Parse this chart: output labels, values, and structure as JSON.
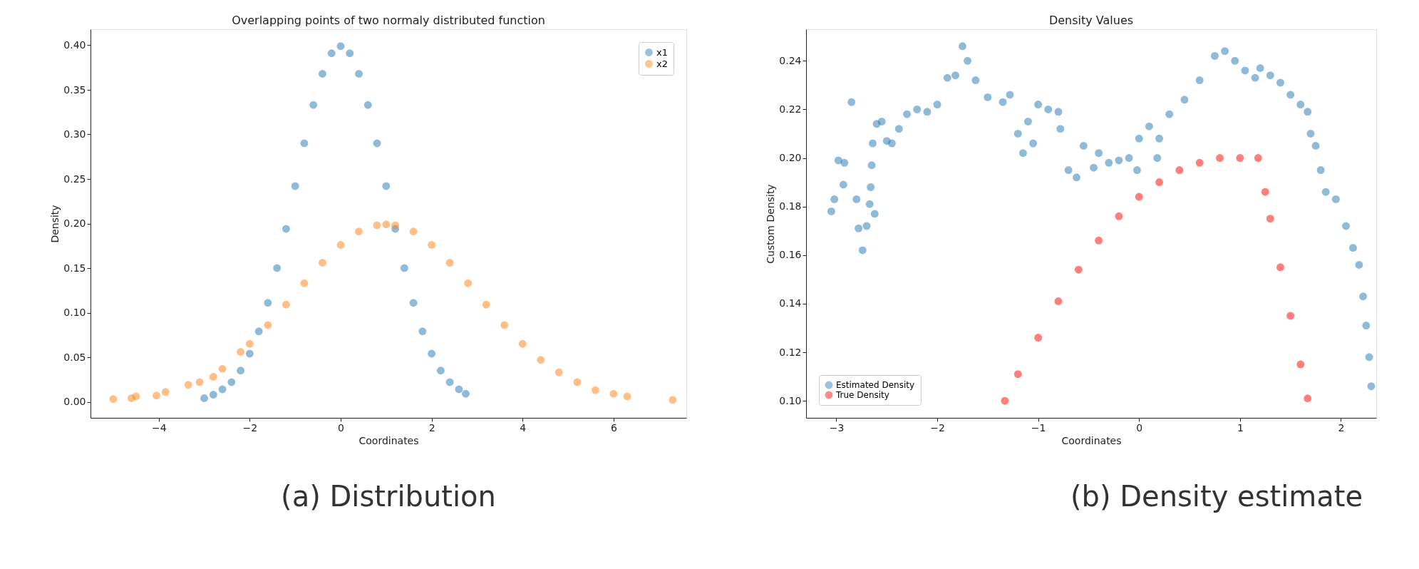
{
  "chart_data": [
    {
      "type": "scatter",
      "title": "Overlapping points of two normaly distributed function",
      "xlabel": "Coordinates",
      "ylabel": "Density",
      "annotations": [
        "(a) Distribution"
      ],
      "legend": "top right",
      "marker": "circle",
      "grid": false,
      "xlim": [
        -5.5,
        7.6
      ],
      "xticks": [
        {
          "value": -4,
          "label": "−4"
        },
        {
          "value": -2,
          "label": "−2"
        },
        0,
        2,
        4,
        6
      ],
      "ylim": [
        -0.018,
        0.418
      ],
      "yticks": [
        {
          "value": 0,
          "label": "0.00"
        },
        {
          "value": 0.05,
          "label": "0.05"
        },
        {
          "value": 0.1,
          "label": "0.10"
        },
        {
          "value": 0.15,
          "label": "0.15"
        },
        {
          "value": 0.2,
          "label": "0.20"
        },
        {
          "value": 0.25,
          "label": "0.25"
        },
        {
          "value": 0.3,
          "label": "0.30"
        },
        {
          "value": 0.35,
          "label": "0.35"
        },
        {
          "value": 0.4,
          "label": "0.40"
        }
      ],
      "series": [
        {
          "name": "x1",
          "color": "#1f77b4",
          "x": [
            -3.0,
            -2.8,
            -2.6,
            -2.4,
            -2.2,
            -2.0,
            -1.8,
            -1.6,
            -1.4,
            -1.2,
            -1.0,
            -0.8,
            -0.6,
            -0.4,
            -0.2,
            0.0,
            0.2,
            0.4,
            0.6,
            0.8,
            1.0,
            1.2,
            1.4,
            1.6,
            1.8,
            2.0,
            2.2,
            2.4,
            2.6,
            2.75
          ],
          "values": [
            0.004,
            0.008,
            0.014,
            0.022,
            0.035,
            0.054,
            0.079,
            0.111,
            0.15,
            0.194,
            0.242,
            0.29,
            0.333,
            0.368,
            0.391,
            0.399,
            0.391,
            0.368,
            0.333,
            0.29,
            0.242,
            0.194,
            0.15,
            0.111,
            0.079,
            0.054,
            0.035,
            0.022,
            0.014,
            0.009
          ]
        },
        {
          "name": "x2",
          "color": "#ff7f0e",
          "x": [
            -5.0,
            -4.6,
            -4.5,
            -4.05,
            -3.85,
            -3.35,
            -3.1,
            -2.8,
            -2.6,
            -2.2,
            -2.0,
            -1.6,
            -1.2,
            -0.8,
            -0.4,
            0.0,
            0.4,
            0.8,
            1.0,
            1.2,
            1.6,
            2.0,
            2.4,
            2.8,
            3.2,
            3.6,
            4.0,
            4.4,
            4.8,
            5.2,
            5.6,
            6.0,
            6.3,
            7.3
          ],
          "values": [
            0.003,
            0.004,
            0.006,
            0.007,
            0.011,
            0.019,
            0.022,
            0.028,
            0.037,
            0.056,
            0.065,
            0.086,
            0.109,
            0.133,
            0.156,
            0.176,
            0.191,
            0.198,
            0.199,
            0.198,
            0.191,
            0.176,
            0.156,
            0.133,
            0.109,
            0.086,
            0.065,
            0.047,
            0.033,
            0.022,
            0.013,
            0.009,
            0.006,
            0.002
          ]
        }
      ]
    },
    {
      "type": "scatter",
      "title": "Density Values",
      "xlabel": "Coordinates",
      "ylabel": "Custom Density",
      "annotations": [
        "(b) Density estimate"
      ],
      "legend": "bottom left",
      "marker": "circle",
      "grid": false,
      "xlim": [
        -3.3,
        2.35
      ],
      "xticks": [
        {
          "value": -3,
          "label": "−3"
        },
        {
          "value": -2,
          "label": "−2"
        },
        {
          "value": -1,
          "label": "−1"
        },
        0,
        1,
        2
      ],
      "ylim": [
        0.093,
        0.253
      ],
      "yticks": [
        {
          "value": 0.1,
          "label": "0.10"
        },
        0.12,
        0.14,
        0.16,
        0.18,
        {
          "value": 0.2,
          "label": "0.20"
        },
        0.22,
        0.24
      ],
      "series": [
        {
          "name": "Estimated Density",
          "color": "#1f77b4",
          "x": [
            -3.05,
            -3.02,
            -2.98,
            -2.93,
            -2.92,
            -2.85,
            -2.8,
            -2.78,
            -2.74,
            -2.7,
            -2.67,
            -2.66,
            -2.65,
            -2.64,
            -2.62,
            -2.6,
            -2.55,
            -2.5,
            -2.45,
            -2.38,
            -2.3,
            -2.2,
            -2.1,
            -2.0,
            -1.9,
            -1.82,
            -1.75,
            -1.7,
            -1.62,
            -1.5,
            -1.35,
            -1.28,
            -1.2,
            -1.15,
            -1.1,
            -1.05,
            -1.0,
            -0.9,
            -0.8,
            -0.78,
            -0.7,
            -0.62,
            -0.55,
            -0.45,
            -0.4,
            -0.3,
            -0.2,
            -0.1,
            -0.02,
            0.0,
            0.1,
            0.18,
            0.2,
            0.3,
            0.45,
            0.6,
            0.75,
            0.85,
            0.95,
            1.05,
            1.15,
            1.2,
            1.3,
            1.4,
            1.5,
            1.6,
            1.67,
            1.7,
            1.75,
            1.8,
            1.85,
            1.95,
            2.05,
            2.12,
            2.18,
            2.22,
            2.25,
            2.28,
            2.3
          ],
          "values": [
            0.178,
            0.183,
            0.199,
            0.189,
            0.198,
            0.223,
            0.183,
            0.171,
            0.162,
            0.172,
            0.181,
            0.188,
            0.197,
            0.206,
            0.177,
            0.214,
            0.215,
            0.207,
            0.206,
            0.212,
            0.218,
            0.22,
            0.219,
            0.222,
            0.233,
            0.234,
            0.246,
            0.24,
            0.232,
            0.225,
            0.223,
            0.226,
            0.21,
            0.202,
            0.215,
            0.206,
            0.222,
            0.22,
            0.219,
            0.212,
            0.195,
            0.192,
            0.205,
            0.196,
            0.202,
            0.198,
            0.199,
            0.2,
            0.195,
            0.208,
            0.213,
            0.2,
            0.208,
            0.218,
            0.224,
            0.232,
            0.242,
            0.244,
            0.24,
            0.236,
            0.233,
            0.237,
            0.234,
            0.231,
            0.226,
            0.222,
            0.219,
            0.21,
            0.205,
            0.195,
            0.186,
            0.183,
            0.172,
            0.163,
            0.156,
            0.143,
            0.131,
            0.118,
            0.106
          ]
        },
        {
          "name": "True Density",
          "color": "#ff0000",
          "x": [
            -1.33,
            -1.2,
            -1.0,
            -0.8,
            -0.6,
            -0.4,
            -0.2,
            0.0,
            0.2,
            0.4,
            0.6,
            0.8,
            1.0,
            1.18,
            1.25,
            1.3,
            1.4,
            1.5,
            1.6,
            1.67
          ],
          "values": [
            0.1,
            0.111,
            0.126,
            0.141,
            0.154,
            0.166,
            0.176,
            0.184,
            0.19,
            0.195,
            0.198,
            0.2,
            0.2,
            0.2,
            0.186,
            0.175,
            0.155,
            0.135,
            0.115,
            0.101
          ]
        }
      ]
    }
  ]
}
